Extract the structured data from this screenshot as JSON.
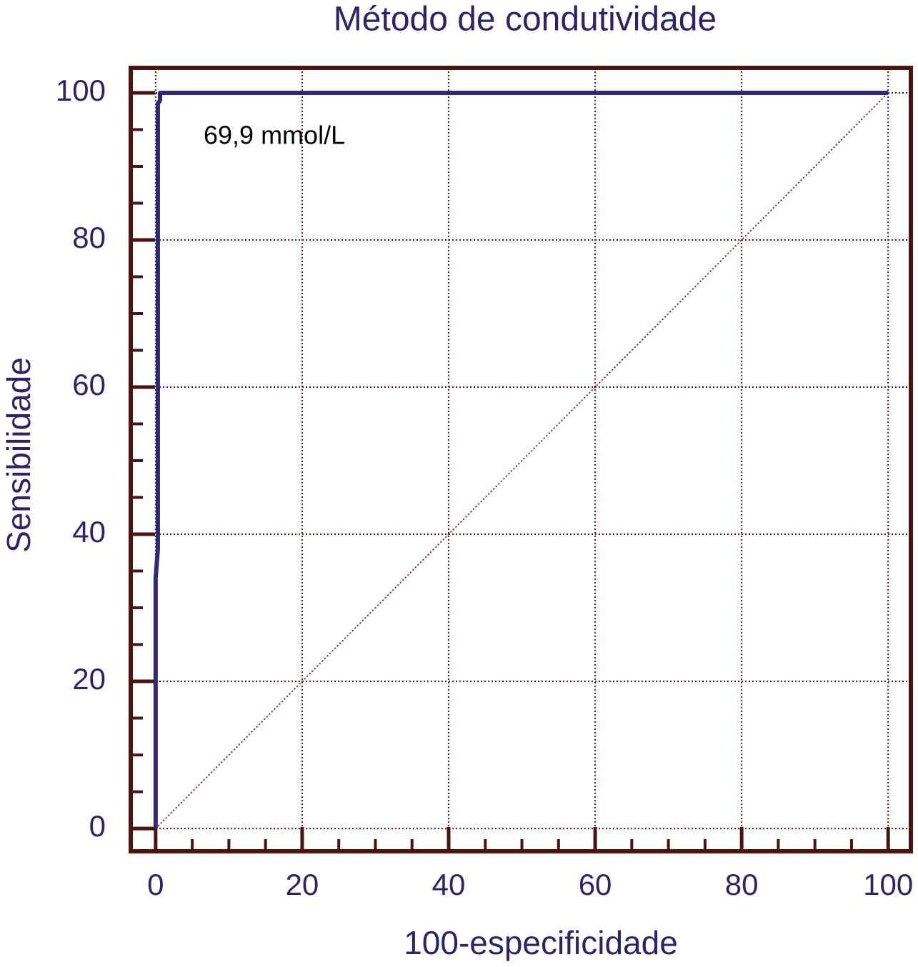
{
  "chart_data": {
    "type": "line",
    "title": "Método de condutividade",
    "xlabel": "100-especificidade",
    "ylabel": "Sensibilidade",
    "annotation": "69,9 mmol/L",
    "xlim": [
      -3.4,
      103.1
    ],
    "ylim": [
      -3.1,
      103.4
    ],
    "xticks": [
      0,
      20,
      40,
      60,
      80,
      100
    ],
    "yticks": [
      0,
      20,
      40,
      60,
      80,
      100
    ],
    "xminorticks": [
      5,
      10,
      15,
      25,
      30,
      35,
      45,
      50,
      55,
      65,
      70,
      75,
      85,
      90,
      95
    ],
    "yminorticks": [
      5,
      10,
      15,
      25,
      30,
      35,
      45,
      50,
      55,
      65,
      70,
      75,
      85,
      90,
      95
    ],
    "grid": true,
    "frame_color": "#4a1410",
    "grid_color": "#5a1a14",
    "series": [
      {
        "color": "#2e2a78",
        "x": [
          0,
          0,
          0.3,
          0.3,
          0.6,
          0.6,
          100
        ],
        "values": [
          0,
          34,
          38,
          98.5,
          99,
          100,
          100
        ]
      },
      {
        "color": "#6a2a20",
        "dashed": true,
        "x": [
          0,
          100
        ],
        "values": [
          0,
          100
        ]
      }
    ]
  }
}
